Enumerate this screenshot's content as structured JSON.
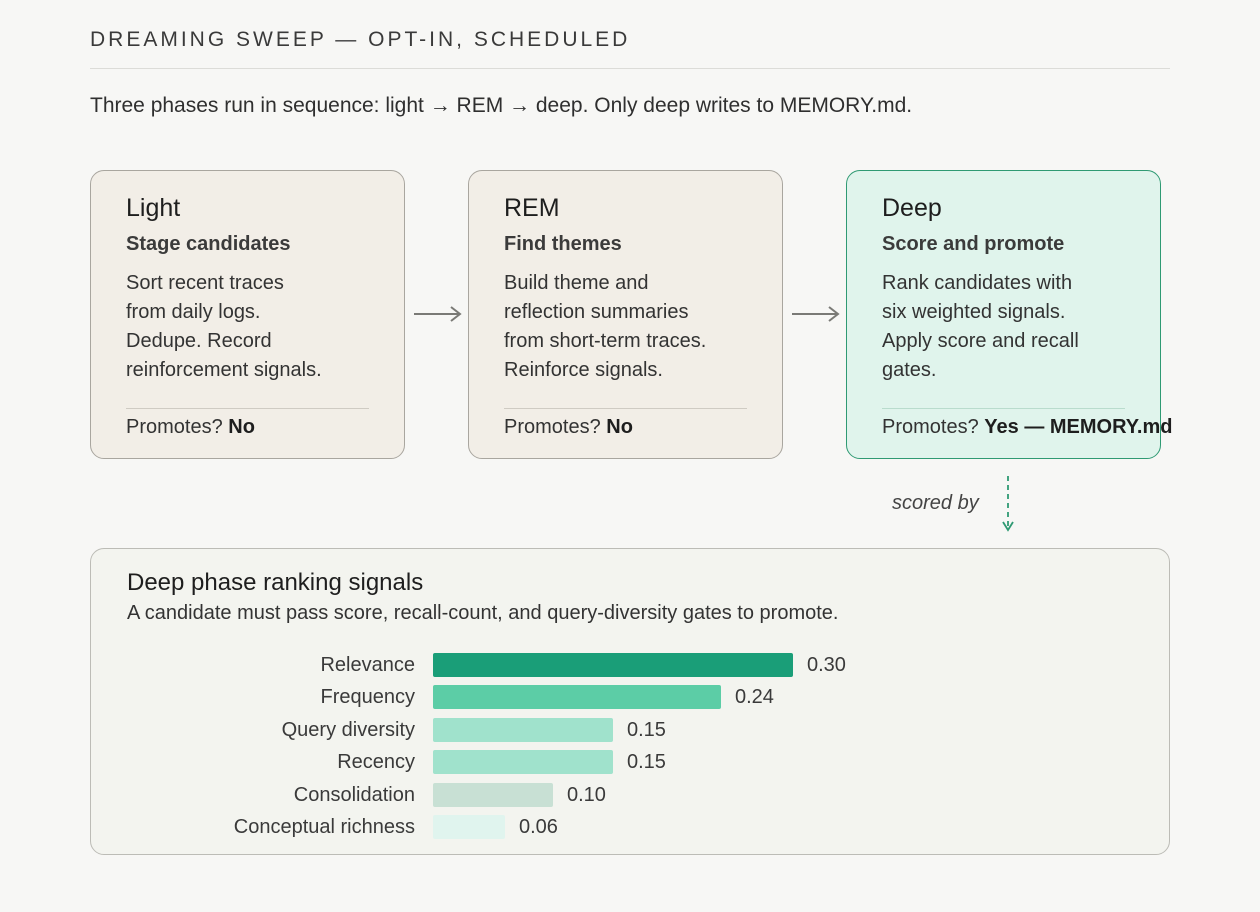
{
  "header": {
    "title": "DREAMING SWEEP — OPT-IN, SCHEDULED",
    "intro": "Three phases run in sequence: light → REM → deep. Only deep writes to MEMORY.md."
  },
  "phases": [
    {
      "title": "Light",
      "subtitle": "Stage candidates",
      "description": "Sort recent traces\nfrom daily logs.\nDedupe. Record\nreinforcement signals.",
      "promotes_label": "Promotes?",
      "promotes_value": "No"
    },
    {
      "title": "REM",
      "subtitle": "Find themes",
      "description": "Build theme and\nreflection summaries\nfrom short-term traces.\nReinforce signals.",
      "promotes_label": "Promotes?",
      "promotes_value": "No"
    },
    {
      "title": "Deep",
      "subtitle": "Score and promote",
      "description": "Rank candidates with\nsix weighted signals.\nApply score and recall\ngates.",
      "promotes_label": "Promotes?",
      "promotes_value": "Yes — MEMORY.md"
    }
  ],
  "connector": {
    "label": "scored by"
  },
  "signals": {
    "title": "Deep phase ranking signals",
    "subtitle": "A candidate must pass score, recall-count, and query-diversity gates to promote."
  },
  "chart_data": {
    "type": "bar",
    "orientation": "horizontal",
    "categories": [
      "Relevance",
      "Frequency",
      "Query diversity",
      "Recency",
      "Consolidation",
      "Conceptual richness"
    ],
    "values": [
      0.3,
      0.24,
      0.15,
      0.15,
      0.1,
      0.06
    ],
    "value_labels": [
      "0.30",
      "0.24",
      "0.15",
      "0.15",
      "0.10",
      "0.06"
    ],
    "colors": [
      "#1a9e78",
      "#5ccda6",
      "#a0e2cc",
      "#a0e2cc",
      "#c8e0d4",
      "#e0f4ee"
    ]
  },
  "colors": {
    "background": "#f7f7f5",
    "card_background": "#f2eee7",
    "deep_card_background": "#e0f4ec",
    "deep_card_border": "#2f9a73",
    "accent": "#1a9e78"
  }
}
